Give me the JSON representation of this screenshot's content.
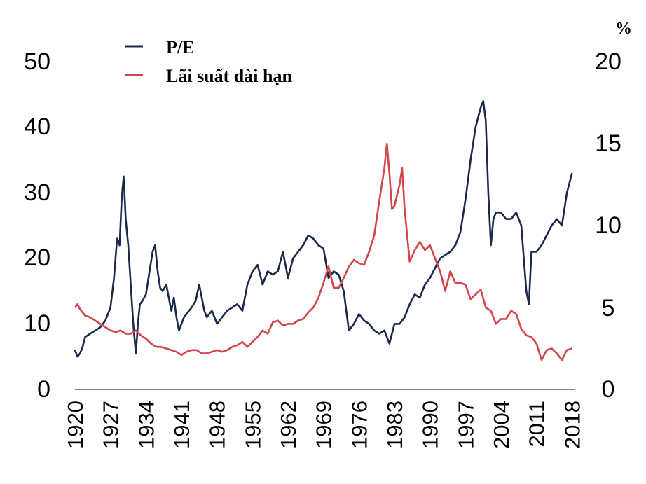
{
  "chart_data": {
    "type": "line",
    "title": "",
    "xlabel": "",
    "ylabel_left": "",
    "ylabel_right": "%",
    "x_ticks": [
      "1920",
      "1927",
      "1934",
      "1941",
      "1948",
      "1955",
      "1962",
      "1969",
      "1976",
      "1983",
      "1990",
      "1997",
      "2004",
      "2011",
      "2018"
    ],
    "y_left_ticks": [
      "0",
      "10",
      "20",
      "30",
      "40",
      "50"
    ],
    "y_right_ticks": [
      "0",
      "5",
      "10",
      "15",
      "20"
    ],
    "y_left_range": [
      0,
      50
    ],
    "y_right_range": [
      0,
      20
    ],
    "x_range": [
      1920,
      2018.5
    ],
    "legend_position": "top-left",
    "series": [
      {
        "name": "P/E",
        "axis": "left",
        "color": "#1b2a4a",
        "points": [
          [
            1920,
            6
          ],
          [
            1920.5,
            5
          ],
          [
            1921,
            5.5
          ],
          [
            1921.5,
            6.5
          ],
          [
            1922,
            8
          ],
          [
            1923,
            8.5
          ],
          [
            1924,
            9
          ],
          [
            1925,
            9.5
          ],
          [
            1926,
            10.5
          ],
          [
            1927,
            12.5
          ],
          [
            1927.7,
            17
          ],
          [
            1928.3,
            23
          ],
          [
            1928.8,
            22
          ],
          [
            1929.2,
            29
          ],
          [
            1929.6,
            32.5
          ],
          [
            1930,
            26
          ],
          [
            1930.5,
            22
          ],
          [
            1931,
            16
          ],
          [
            1931.5,
            10
          ],
          [
            1932,
            5.5
          ],
          [
            1932.4,
            10
          ],
          [
            1932.8,
            13
          ],
          [
            1933.3,
            13.5
          ],
          [
            1934,
            14.5
          ],
          [
            1934.7,
            18
          ],
          [
            1935.3,
            21
          ],
          [
            1935.8,
            22
          ],
          [
            1936.3,
            18
          ],
          [
            1936.8,
            15.5
          ],
          [
            1937.3,
            15
          ],
          [
            1938,
            16
          ],
          [
            1938.5,
            14
          ],
          [
            1939,
            12
          ],
          [
            1939.5,
            14
          ],
          [
            1940,
            11
          ],
          [
            1940.5,
            9
          ],
          [
            1941,
            10
          ],
          [
            1941.5,
            11
          ],
          [
            1942,
            11.5
          ],
          [
            1943,
            12.5
          ],
          [
            1943.8,
            13.5
          ],
          [
            1944.5,
            16
          ],
          [
            1945,
            14
          ],
          [
            1945.5,
            12
          ],
          [
            1946,
            11
          ],
          [
            1947,
            12
          ],
          [
            1948,
            10
          ],
          [
            1949,
            11
          ],
          [
            1950,
            12
          ],
          [
            1951,
            12.5
          ],
          [
            1952,
            13
          ],
          [
            1953,
            12
          ],
          [
            1954,
            16
          ],
          [
            1955,
            18
          ],
          [
            1956,
            19
          ],
          [
            1957,
            16
          ],
          [
            1958,
            18
          ],
          [
            1959,
            17.5
          ],
          [
            1960,
            18
          ],
          [
            1961,
            21
          ],
          [
            1962,
            17
          ],
          [
            1963,
            20
          ],
          [
            1964,
            21
          ],
          [
            1965,
            22
          ],
          [
            1966,
            23.5
          ],
          [
            1967,
            23
          ],
          [
            1968,
            22
          ],
          [
            1969,
            21.5
          ],
          [
            1970,
            17
          ],
          [
            1971,
            18
          ],
          [
            1972,
            17.5
          ],
          [
            1973,
            15
          ],
          [
            1974,
            9
          ],
          [
            1975,
            10
          ],
          [
            1976,
            11.5
          ],
          [
            1977,
            10.5
          ],
          [
            1978,
            10
          ],
          [
            1979,
            9
          ],
          [
            1980,
            8.5
          ],
          [
            1981,
            9
          ],
          [
            1982,
            7
          ],
          [
            1983,
            10
          ],
          [
            1984,
            10
          ],
          [
            1985,
            11
          ],
          [
            1986,
            13
          ],
          [
            1987,
            14.5
          ],
          [
            1988,
            14
          ],
          [
            1989,
            16
          ],
          [
            1990,
            17
          ],
          [
            1991,
            18.5
          ],
          [
            1992,
            20
          ],
          [
            1993,
            20.5
          ],
          [
            1994,
            21
          ],
          [
            1995,
            22
          ],
          [
            1996,
            24
          ],
          [
            1997,
            29
          ],
          [
            1998,
            35
          ],
          [
            1999,
            40
          ],
          [
            2000,
            43
          ],
          [
            2000.5,
            44
          ],
          [
            2001,
            41
          ],
          [
            2001.5,
            30
          ],
          [
            2002,
            22
          ],
          [
            2002.5,
            26
          ],
          [
            2003,
            27
          ],
          [
            2004,
            27
          ],
          [
            2005,
            26
          ],
          [
            2006,
            26
          ],
          [
            2007,
            27
          ],
          [
            2008,
            25
          ],
          [
            2009,
            15
          ],
          [
            2009.5,
            13
          ],
          [
            2010,
            21
          ],
          [
            2011,
            21
          ],
          [
            2012,
            22
          ],
          [
            2013,
            23.5
          ],
          [
            2014,
            25
          ],
          [
            2015,
            26
          ],
          [
            2016,
            25
          ],
          [
            2017,
            30
          ],
          [
            2018,
            33
          ]
        ]
      },
      {
        "name": "Lãi suất dài hạn",
        "axis": "right",
        "color": "#d1454b",
        "points": [
          [
            1920,
            5
          ],
          [
            1920.5,
            5.2
          ],
          [
            1921,
            4.9
          ],
          [
            1922,
            4.5
          ],
          [
            1923,
            4.4
          ],
          [
            1924,
            4.2
          ],
          [
            1925,
            4
          ],
          [
            1926,
            3.8
          ],
          [
            1927,
            3.6
          ],
          [
            1928,
            3.5
          ],
          [
            1929,
            3.6
          ],
          [
            1930,
            3.4
          ],
          [
            1931,
            3.4
          ],
          [
            1932,
            3.6
          ],
          [
            1933,
            3.3
          ],
          [
            1934,
            3.1
          ],
          [
            1935,
            2.8
          ],
          [
            1936,
            2.6
          ],
          [
            1937,
            2.6
          ],
          [
            1938,
            2.5
          ],
          [
            1939,
            2.4
          ],
          [
            1940,
            2.3
          ],
          [
            1941,
            2.1
          ],
          [
            1942,
            2.3
          ],
          [
            1943,
            2.4
          ],
          [
            1944,
            2.4
          ],
          [
            1945,
            2.2
          ],
          [
            1946,
            2.2
          ],
          [
            1947,
            2.3
          ],
          [
            1948,
            2.4
          ],
          [
            1949,
            2.3
          ],
          [
            1950,
            2.4
          ],
          [
            1951,
            2.6
          ],
          [
            1952,
            2.7
          ],
          [
            1953,
            2.9
          ],
          [
            1954,
            2.6
          ],
          [
            1955,
            2.9
          ],
          [
            1956,
            3.2
          ],
          [
            1957,
            3.6
          ],
          [
            1958,
            3.4
          ],
          [
            1959,
            4.1
          ],
          [
            1960,
            4.2
          ],
          [
            1961,
            3.9
          ],
          [
            1962,
            4
          ],
          [
            1963,
            4
          ],
          [
            1964,
            4.2
          ],
          [
            1965,
            4.3
          ],
          [
            1966,
            4.7
          ],
          [
            1967,
            5
          ],
          [
            1968,
            5.6
          ],
          [
            1969,
            6.5
          ],
          [
            1970,
            7.5
          ],
          [
            1971,
            6.2
          ],
          [
            1972,
            6.2
          ],
          [
            1973,
            6.8
          ],
          [
            1974,
            7.5
          ],
          [
            1975,
            7.9
          ],
          [
            1976,
            7.7
          ],
          [
            1977,
            7.6
          ],
          [
            1978,
            8.4
          ],
          [
            1979,
            9.4
          ],
          [
            1980,
            11.5
          ],
          [
            1981,
            13.5
          ],
          [
            1981.5,
            15
          ],
          [
            1982,
            13.2
          ],
          [
            1982.5,
            11
          ],
          [
            1983,
            11.2
          ],
          [
            1984,
            12.5
          ],
          [
            1984.5,
            13.5
          ],
          [
            1985,
            11
          ],
          [
            1986,
            7.8
          ],
          [
            1987,
            8.5
          ],
          [
            1988,
            9
          ],
          [
            1989,
            8.5
          ],
          [
            1990,
            8.8
          ],
          [
            1991,
            8
          ],
          [
            1992,
            7.2
          ],
          [
            1993,
            6
          ],
          [
            1994,
            7.2
          ],
          [
            1995,
            6.5
          ],
          [
            1996,
            6.5
          ],
          [
            1997,
            6.4
          ],
          [
            1998,
            5.5
          ],
          [
            1999,
            5.8
          ],
          [
            2000,
            6.1
          ],
          [
            2001,
            5
          ],
          [
            2002,
            4.8
          ],
          [
            2003,
            4
          ],
          [
            2004,
            4.3
          ],
          [
            2005,
            4.3
          ],
          [
            2006,
            4.8
          ],
          [
            2007,
            4.6
          ],
          [
            2008,
            3.7
          ],
          [
            2009,
            3.3
          ],
          [
            2010,
            3.2
          ],
          [
            2011,
            2.8
          ],
          [
            2012,
            1.8
          ],
          [
            2013,
            2.4
          ],
          [
            2014,
            2.5
          ],
          [
            2015,
            2.2
          ],
          [
            2016,
            1.8
          ],
          [
            2017,
            2.4
          ],
          [
            2018,
            2.5
          ]
        ]
      }
    ]
  }
}
